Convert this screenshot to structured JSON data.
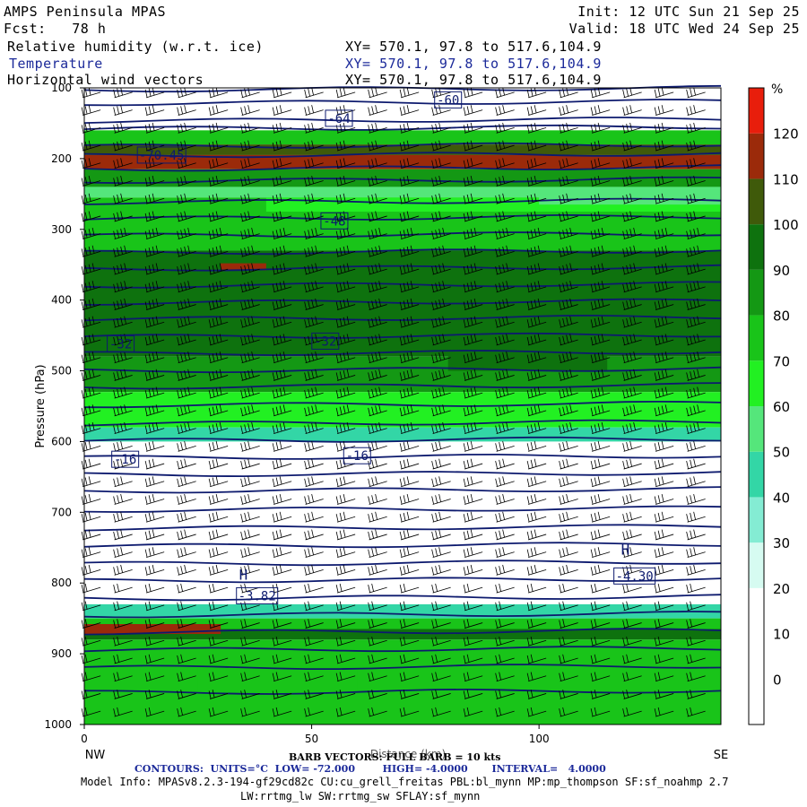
{
  "header": {
    "title": "AMPS Peninsula MPAS",
    "fcst": "Fcst:   78 h",
    "init": "Init: 12 UTC Sun 21 Sep 25",
    "valid": "Valid: 18 UTC Wed 24 Sep 25",
    "field1": "Relative humidity (w.r.t. ice)",
    "field2": "Temperature",
    "field3": "Horizontal wind vectors",
    "xy1": "XY= 570.1, 97.8 to 517.6,104.9",
    "xy2": "XY= 570.1, 97.8 to 517.6,104.9",
    "xy3": "XY= 570.1, 97.8 to 517.6,104.9"
  },
  "footer": {
    "barb": "BARB VECTORS: FULL BARB = 10 kts",
    "contours": "CONTOURS:  UNITS=°C  LOW= -72.000        HIGH= -4.0000       INTERVAL=   4.0000",
    "model": "Model Info: MPASv8.2.3-194-gf29cd82c CU:cu_grell_freitas PBL:bl_mynn MP:mp_thompson SF:sf_noahmp 2.7",
    "model2": "LW:rrtmg_lw SW:rrtmg_sw SFLAY:sf_mynn"
  },
  "colors": {
    "contour": "#0d1a6e",
    "scale": [
      "#ffffff",
      "#ffffff",
      "#ffffff",
      "#d6fbf1",
      "#84ecd3",
      "#33d6a6",
      "#55e67b",
      "#22f022",
      "#19c419",
      "#149814",
      "#0e720e",
      "#3f5a0a",
      "#9b2a0a",
      "#e81e0c"
    ]
  },
  "chart_data": {
    "type": "heatmap",
    "title": "Relative humidity (w.r.t. ice)",
    "ylabel": "Pressure (hPa)",
    "xlabel": "Distance (km)",
    "x_start_label": "NW",
    "x_end_label": "SE",
    "x_ticks": [
      0,
      50,
      100
    ],
    "xlim": [
      0,
      140
    ],
    "y_ticks": [
      100,
      200,
      300,
      400,
      500,
      600,
      700,
      800,
      900,
      1000
    ],
    "ylim": [
      100,
      1000
    ],
    "colorbar": {
      "unit": "%",
      "ticks": [
        0,
        10,
        20,
        30,
        40,
        50,
        60,
        70,
        80,
        90,
        100,
        110,
        120
      ],
      "range": [
        -10,
        130
      ],
      "step": 10
    },
    "rh_bands": [
      {
        "p": [
          100,
          160
        ],
        "rh": 5
      },
      {
        "p": [
          160,
          180
        ],
        "rh": 75
      },
      {
        "p": [
          180,
          195
        ],
        "rh": 102
      },
      {
        "p": [
          195,
          215
        ],
        "rh": 112
      },
      {
        "p": [
          215,
          240
        ],
        "rh": 85
      },
      {
        "p": [
          240,
          255
        ],
        "rh": 55
      },
      {
        "p": [
          255,
          330
        ],
        "rh": 78
      },
      {
        "p": [
          330,
          480
        ],
        "rh": 92
      },
      {
        "p": [
          480,
          530
        ],
        "rh": 82
      },
      {
        "p": [
          530,
          580
        ],
        "rh": 65
      },
      {
        "p": [
          580,
          600
        ],
        "rh": 40
      },
      {
        "p": [
          600,
          830
        ],
        "rh": 5
      },
      {
        "p": [
          830,
          850
        ],
        "rh": 45
      },
      {
        "p": [
          850,
          865
        ],
        "rh": 70
      },
      {
        "p": [
          865,
          880
        ],
        "rh": 98
      },
      {
        "p": [
          880,
          1000
        ],
        "rh": 78
      }
    ],
    "rh_patches": [
      {
        "x": [
          0,
          70
        ],
        "p": [
          195,
          210
        ],
        "rh": 115
      },
      {
        "x": [
          30,
          40
        ],
        "p": [
          348,
          358
        ],
        "rh": 115
      },
      {
        "x": [
          0,
          30
        ],
        "p": [
          858,
          872
        ],
        "rh": 115
      },
      {
        "x": [
          80,
          115
        ],
        "p": [
          420,
          500
        ],
        "rh": 98
      },
      {
        "x": [
          40,
          140
        ],
        "p": [
          255,
          275
        ],
        "rh": 65
      },
      {
        "x": [
          100,
          140
        ],
        "p": [
          250,
          265
        ],
        "rh": 55
      },
      {
        "x": [
          25,
          60
        ],
        "p": [
          920,
          960
        ],
        "rh": 72
      }
    ],
    "contour_labels": [
      {
        "text": "-70.45",
        "x": 17,
        "p": 195
      },
      {
        "text": "-64",
        "x": 56,
        "p": 143
      },
      {
        "text": "-60",
        "x": 80,
        "p": 117
      },
      {
        "text": "-48",
        "x": 55,
        "p": 288
      },
      {
        "text": "-32",
        "x": 8,
        "p": 462
      },
      {
        "text": "-32",
        "x": 53,
        "p": 458
      },
      {
        "text": "-16",
        "x": 9,
        "p": 625
      },
      {
        "text": "-16",
        "x": 60,
        "p": 620
      },
      {
        "text": "-3.82",
        "x": 38,
        "p": 818
      },
      {
        "text": "-4.30",
        "x": 121,
        "p": 790
      }
    ],
    "high_labels": [
      {
        "text": "H",
        "x": 35,
        "p": 795
      },
      {
        "text": "H",
        "x": 119,
        "p": 760
      }
    ],
    "isotherm_pressures": [
      103,
      122,
      147,
      158,
      183,
      196,
      215,
      232,
      262,
      285,
      309,
      333,
      356,
      380,
      404,
      427,
      452,
      476,
      500,
      523,
      549,
      575,
      599,
      623,
      647,
      670,
      697,
      723,
      748,
      773,
      797,
      822,
      846,
      870,
      895,
      920,
      955
    ]
  }
}
